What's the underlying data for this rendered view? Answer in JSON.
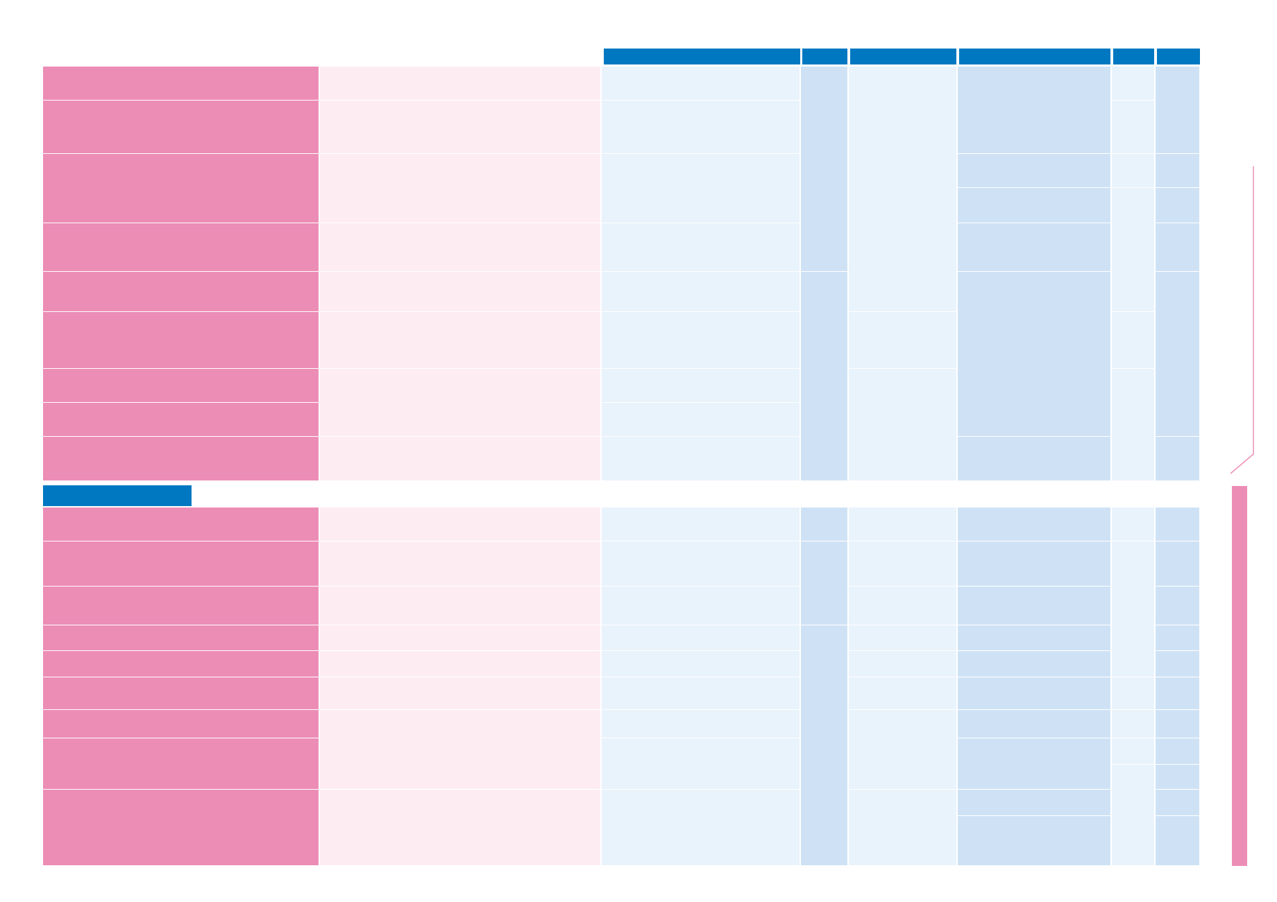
{
  "colors": {
    "header_blue": "#0078c1",
    "row_label_pink": "#ec8db6",
    "pale_pink": "#fdedf2",
    "pale_blue": "#e9f3fc",
    "mid_blue": "#cfe2f5",
    "divider": "#ffffff"
  },
  "sections": [
    {
      "name": "top-section"
    },
    {
      "name": "bottom-section"
    }
  ]
}
